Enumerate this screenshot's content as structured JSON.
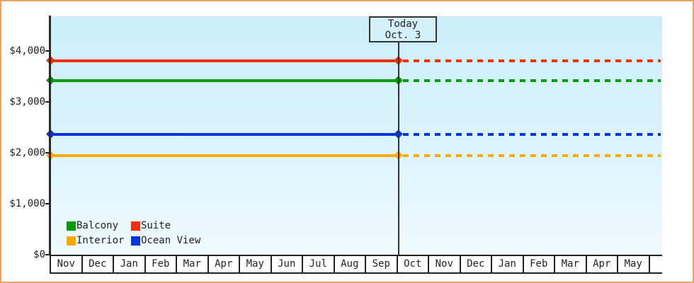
{
  "frame": {
    "border_color": "#eaa55e",
    "background": "#ffffff"
  },
  "chart_data": {
    "type": "line",
    "title": "",
    "xlabel": "",
    "ylabel": "",
    "plot_background_gradient": [
      "#cbeefb",
      "#eefafe"
    ],
    "grid": false,
    "x_categories": [
      "Nov",
      "Dec",
      "Jan",
      "Feb",
      "Mar",
      "Apr",
      "May",
      "Jun",
      "Jul",
      "Aug",
      "Sep",
      "Oct",
      "Nov",
      "Dec",
      "Jan",
      "Feb",
      "Mar",
      "Apr",
      "May"
    ],
    "x_trailing_blank_cell": true,
    "y_axis": {
      "ticks": [
        {
          "label": "$4,000",
          "value": 4000
        },
        {
          "label": "$3,000",
          "value": 3000
        },
        {
          "label": "$2,000",
          "value": 2000
        },
        {
          "label": "$1,000",
          "value": 1000
        },
        {
          "label": "$0",
          "value": 0
        }
      ],
      "ylim": [
        0,
        4500
      ]
    },
    "today_marker": {
      "title": "Today",
      "date": "Oct. 3",
      "x_month_boundary_index": 11,
      "line_color": "#333333",
      "box_background": "#d3f0fb"
    },
    "series": [
      {
        "name": "Suite",
        "color": "#f53000",
        "value": 3800,
        "style_before_today": "solid",
        "style_after_today": "dotted"
      },
      {
        "name": "Balcony",
        "color": "#009b00",
        "value": 3420,
        "style_before_today": "solid",
        "style_after_today": "dotted"
      },
      {
        "name": "Ocean View",
        "color": "#0635e0",
        "value": 2360,
        "style_before_today": "solid",
        "style_after_today": "dotted"
      },
      {
        "name": "Interior",
        "color": "#ffaa00",
        "value": 1950,
        "style_before_today": "solid",
        "style_after_today": "dotted"
      }
    ],
    "legend": {
      "position": "bottom-left",
      "columns": 2,
      "items": [
        "Balcony",
        "Suite",
        "Interior",
        "Ocean View"
      ]
    }
  }
}
